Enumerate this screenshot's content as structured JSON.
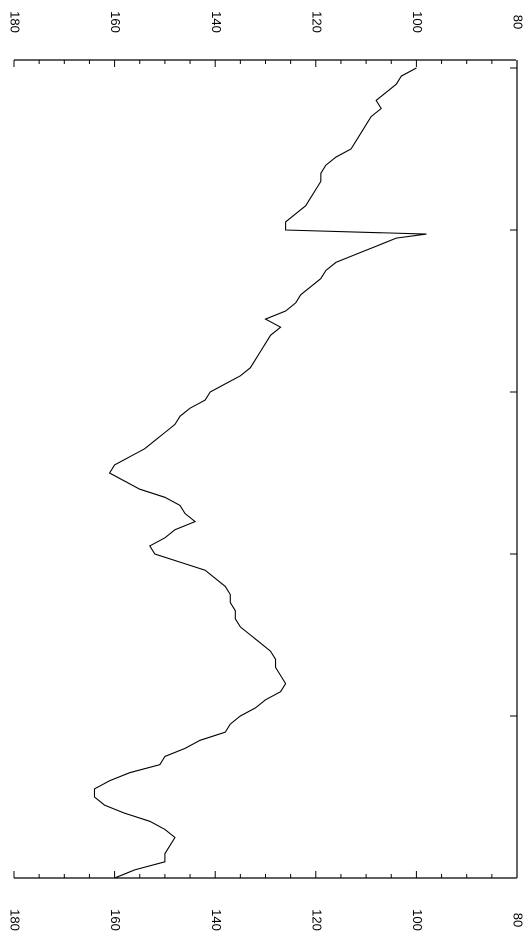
{
  "chart_data": {
    "type": "line",
    "title": "",
    "xlabel": "",
    "ylabel": "",
    "orientation": "rotated-90-clockwise",
    "ylim": [
      80,
      180
    ],
    "yticks": [
      80,
      100,
      120,
      140,
      160,
      180
    ],
    "ytick_labels": [
      "80",
      "100",
      "120",
      "140",
      "160",
      "180"
    ],
    "xlim": [
      0,
      100
    ],
    "major_x_ticks": [
      0,
      20,
      40,
      60,
      80,
      100
    ],
    "minor_y_step": 5,
    "grid": false,
    "legend": "none",
    "line_color": "#000000",
    "series": [
      {
        "x": [
          0,
          1,
          2,
          3,
          4,
          5,
          6,
          7,
          8,
          9,
          10,
          11,
          12,
          13,
          14,
          15,
          16,
          17,
          18,
          19,
          20,
          20.5,
          21,
          22,
          23,
          24,
          25,
          26,
          27,
          28,
          29,
          30,
          31,
          32,
          33,
          34,
          35,
          36,
          37,
          38,
          39,
          40,
          41,
          42,
          43,
          44,
          45,
          46,
          47,
          48,
          49,
          50,
          51,
          52,
          53,
          54,
          55,
          56,
          57,
          58,
          59,
          60,
          61,
          62,
          63,
          64,
          65,
          66,
          67,
          68,
          69,
          70,
          71,
          72,
          73,
          74,
          75,
          76,
          77,
          78,
          79,
          80,
          81,
          82,
          83,
          84,
          85,
          86,
          87,
          88,
          89,
          90,
          91,
          92,
          93,
          94,
          95,
          96,
          97,
          98,
          99,
          100
        ],
        "values": [
          100,
          103,
          104,
          106,
          108,
          107,
          109,
          110,
          111,
          112,
          113,
          116,
          118,
          119,
          119,
          120,
          121,
          122,
          124,
          126,
          126,
          98,
          104,
          108,
          112,
          116,
          118,
          119,
          121,
          123,
          124,
          126,
          130,
          127,
          129,
          130,
          131,
          132,
          133,
          135,
          138,
          141,
          142,
          145,
          147,
          148,
          150,
          152,
          154,
          157,
          160,
          161,
          158,
          155,
          150,
          147,
          146,
          144,
          148,
          150,
          153,
          152,
          147,
          142,
          140,
          138,
          137,
          137,
          136,
          136,
          135,
          133,
          131,
          129,
          128,
          128,
          127,
          126,
          127,
          130,
          132,
          135,
          137,
          138,
          143,
          146,
          150,
          151,
          157,
          161,
          164,
          164,
          162,
          158,
          153,
          150,
          148,
          149,
          150,
          150,
          156,
          160
        ]
      }
    ]
  }
}
